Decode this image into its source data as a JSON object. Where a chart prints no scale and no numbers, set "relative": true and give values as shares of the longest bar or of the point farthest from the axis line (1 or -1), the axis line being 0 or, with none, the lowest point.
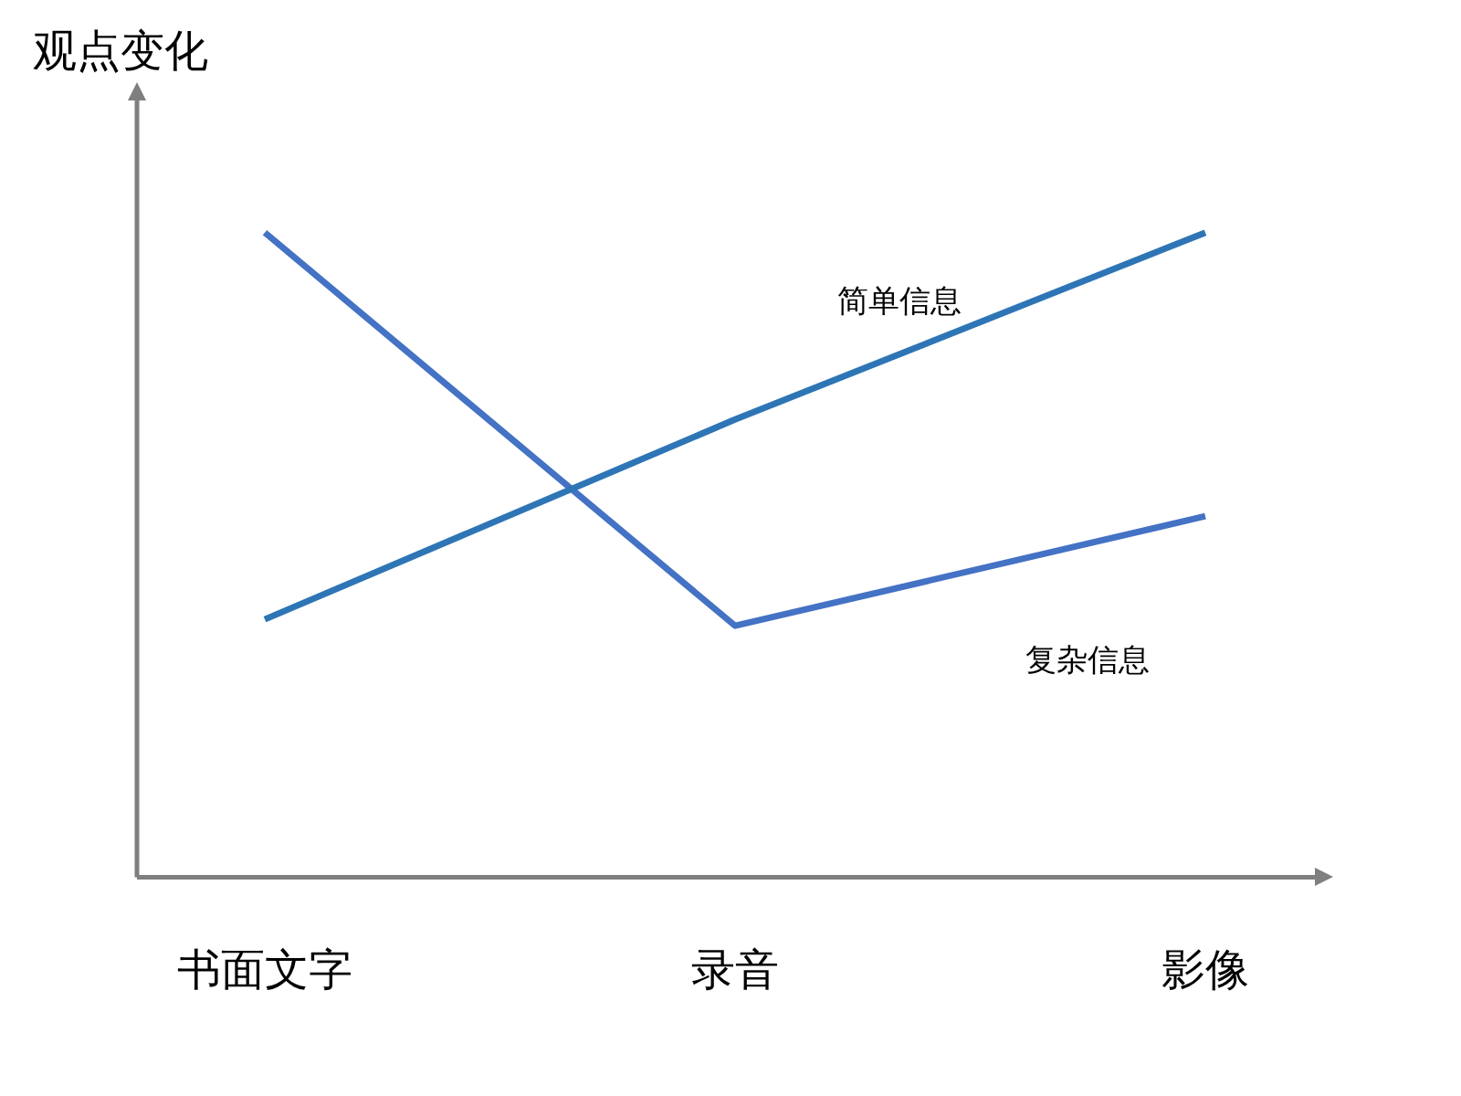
{
  "chart_data": {
    "type": "line",
    "title": "观点变化",
    "relative": true,
    "categories": [
      "书面文字",
      "录音",
      "影像"
    ],
    "series": [
      {
        "name": "简单信息",
        "color": "#2e75b6",
        "values": [
          0.4,
          0.71,
          1
        ]
      },
      {
        "name": "复杂信息",
        "color": "#4472c4",
        "values": [
          1,
          0.39,
          0.56
        ]
      }
    ],
    "legend": false,
    "grid": false,
    "marker": "none",
    "line_style": "solid"
  }
}
